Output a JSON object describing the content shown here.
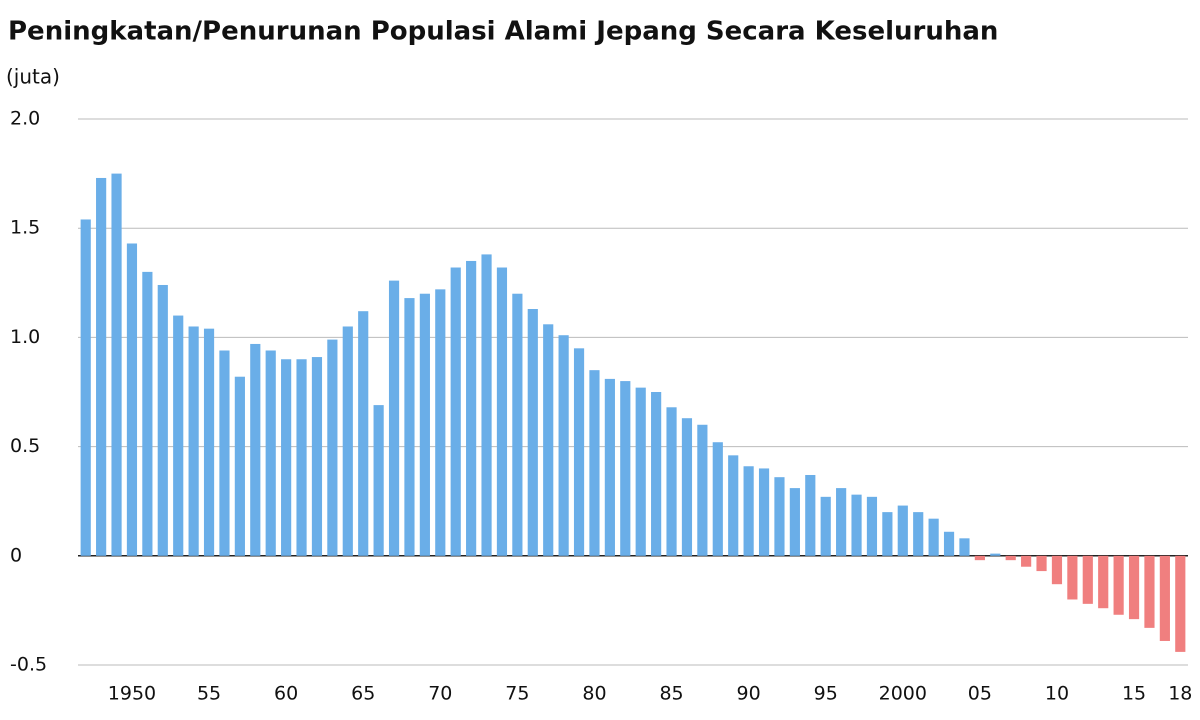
{
  "chart_data": {
    "type": "bar",
    "title": "Peningkatan/Penurunan Populasi Alami Jepang Secara Keseluruhan",
    "y_label": "(juta)",
    "categories": [
      null,
      null,
      null,
      "1950",
      null,
      null,
      null,
      null,
      "55",
      null,
      null,
      null,
      null,
      "60",
      null,
      null,
      null,
      null,
      "65",
      null,
      null,
      null,
      null,
      "70",
      null,
      null,
      null,
      null,
      "75",
      null,
      null,
      null,
      null,
      "80",
      null,
      null,
      null,
      null,
      "85",
      null,
      null,
      null,
      null,
      "90",
      null,
      null,
      null,
      null,
      "95",
      null,
      null,
      null,
      null,
      "2000",
      null,
      null,
      null,
      null,
      "05",
      null,
      null,
      null,
      null,
      "10",
      null,
      null,
      null,
      null,
      "15",
      null,
      null,
      "18"
    ],
    "values": [
      1.54,
      1.73,
      1.75,
      1.43,
      1.3,
      1.24,
      1.1,
      1.05,
      1.04,
      0.94,
      0.82,
      0.97,
      0.94,
      0.9,
      0.9,
      0.91,
      0.99,
      1.05,
      1.12,
      0.69,
      1.26,
      1.18,
      1.2,
      1.22,
      1.32,
      1.35,
      1.38,
      1.32,
      1.2,
      1.13,
      1.06,
      1.01,
      0.95,
      0.85,
      0.81,
      0.8,
      0.77,
      0.75,
      0.68,
      0.63,
      0.6,
      0.52,
      0.46,
      0.41,
      0.4,
      0.36,
      0.31,
      0.37,
      0.27,
      0.31,
      0.28,
      0.27,
      0.2,
      0.23,
      0.2,
      0.17,
      0.11,
      0.08,
      -0.02,
      0.01,
      -0.02,
      -0.05,
      -0.07,
      -0.13,
      -0.2,
      -0.22,
      -0.24,
      -0.27,
      -0.29,
      -0.33,
      -0.39,
      -0.44
    ],
    "color": "#6aaee8",
    "negative_color": "#f07f7f",
    "ylim": [
      -0.5,
      2.0
    ],
    "yticks": [
      {
        "value": 2,
        "label": "2.0"
      },
      1.5,
      {
        "value": 1,
        "label": "1.0"
      },
      0.5,
      0,
      -0.5
    ],
    "grid": true
  }
}
